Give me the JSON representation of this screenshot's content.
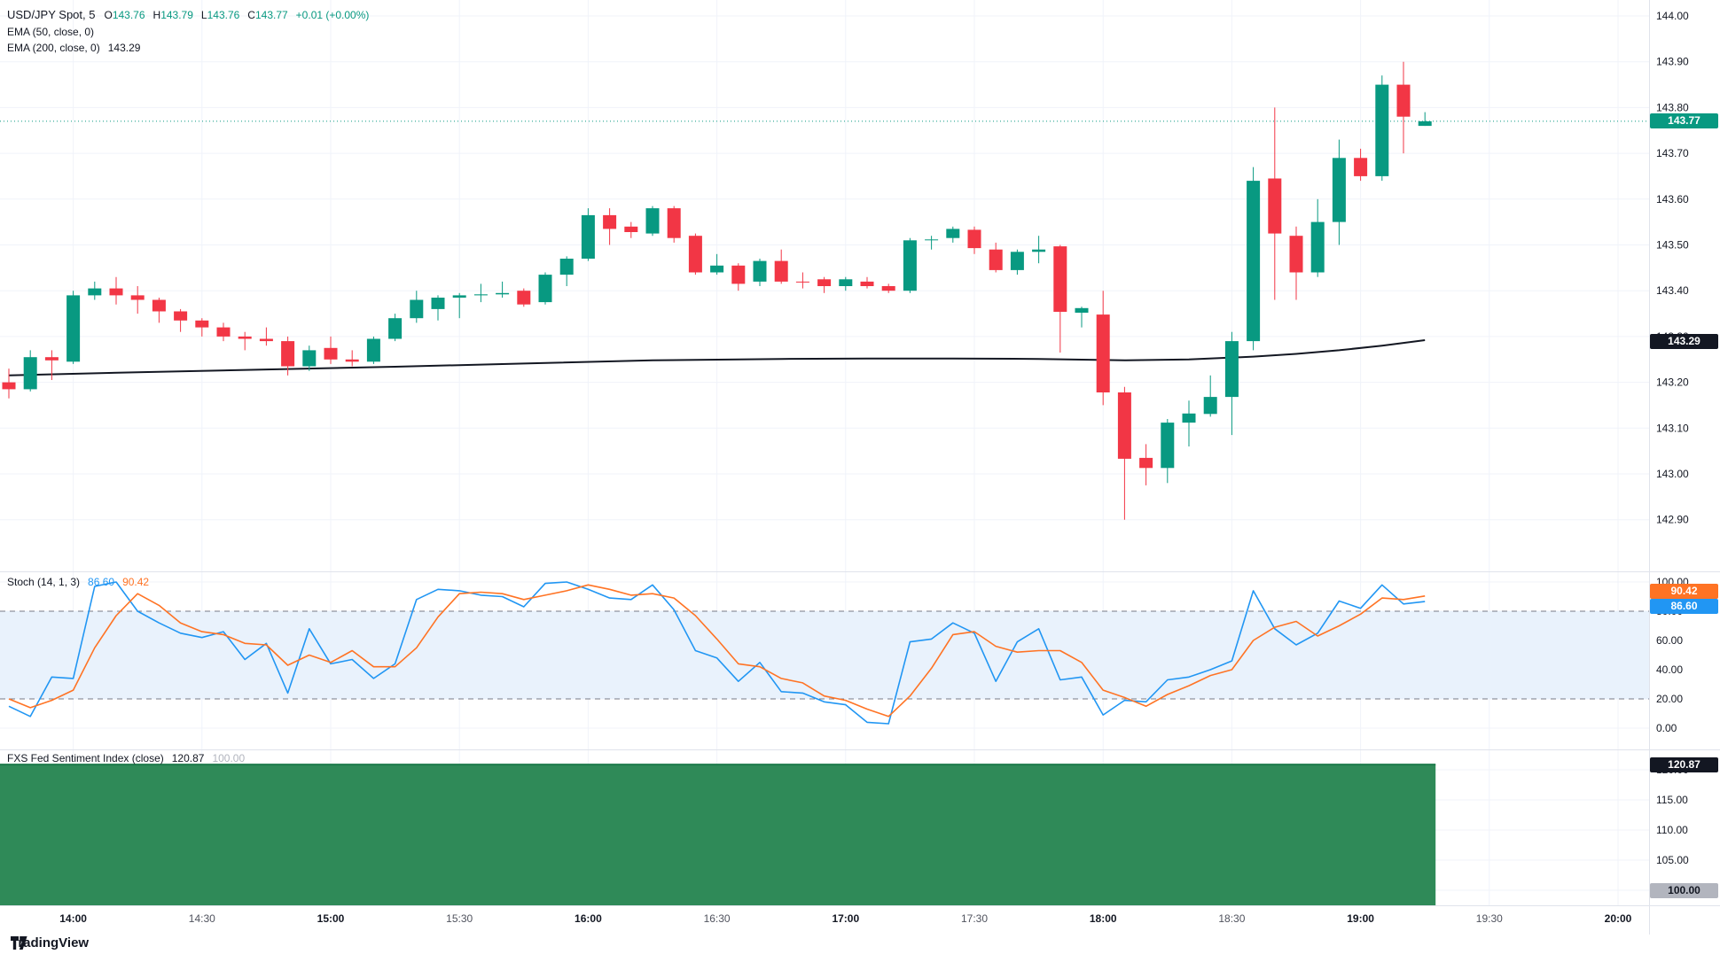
{
  "legend": {
    "symbol": "USD/JPY Spot, 5",
    "ohlc": [
      {
        "k": "O",
        "v": "143.76"
      },
      {
        "k": "H",
        "v": "143.79"
      },
      {
        "k": "L",
        "v": "143.76"
      },
      {
        "k": "C",
        "v": "143.77"
      }
    ],
    "change": "+0.01 (+0.00%)",
    "ema50": "EMA (50, close, 0)",
    "ema200": "EMA (200, close, 0)",
    "ema200_value": "143.29",
    "stoch": "Stoch (14, 1, 3)",
    "stoch_k_value": "86.60",
    "stoch_d_value": "90.42",
    "fxs": "FXS Fed Sentiment Index (close)",
    "fxs_value": "120.87",
    "fxs_baseline": "100.00"
  },
  "badges": {
    "price": "143.77",
    "ema": "143.29",
    "stoch_d": "90.42",
    "stoch_k": "86.60",
    "fxs": "120.87",
    "fxs_base": "100.00"
  },
  "watermark": {
    "logo_icon": "tradingview-logo-icon",
    "label": "TradingView"
  },
  "colors": {
    "up": "#089981",
    "down": "#F23645",
    "ema_line": "#131722",
    "stoch_k": "#2196F3",
    "stoch_d": "#FF7324",
    "stoch_band": "#E9F2FC",
    "band_dash": "#787B86",
    "grid": "#F0F3FA",
    "separator": "#E0E3EB",
    "area_fill": "#2F8A58",
    "area_line": "#1C7A4A",
    "axis_text": "#131722",
    "minor_time_text": "#50535E",
    "price_badge_bg": "#089981",
    "ema_badge_bg": "#131722",
    "fxs_badge_bg": "#131722",
    "fxs_base_badge_bg": "#B2B5BE"
  },
  "chart_data": [
    {
      "type": "candlestick",
      "title": "USD/JPY Spot, 5",
      "interval_label": "5",
      "current_price": 143.77,
      "ylim": [
        142.82,
        144.02
      ],
      "y_ticks": [
        144.0,
        143.9,
        143.8,
        143.7,
        143.6,
        143.5,
        143.4,
        143.3,
        143.2,
        143.1,
        143.0,
        142.9
      ],
      "ema200": {
        "name": "EMA (200, close, 0)",
        "value": 143.29,
        "points": [
          [
            0,
            143.215
          ],
          [
            6,
            143.222
          ],
          [
            12,
            143.228
          ],
          [
            18,
            143.234
          ],
          [
            24,
            143.241
          ],
          [
            30,
            143.248
          ],
          [
            36,
            143.251
          ],
          [
            40,
            143.252
          ],
          [
            44,
            143.252
          ],
          [
            48,
            143.251
          ],
          [
            52,
            143.248
          ],
          [
            55,
            143.25
          ],
          [
            58,
            143.256
          ],
          [
            60,
            143.262
          ],
          [
            62,
            143.27
          ],
          [
            64,
            143.28
          ],
          [
            66,
            143.292
          ]
        ]
      },
      "ohlc": [
        [
          143.2,
          143.23,
          143.165,
          143.185
        ],
        [
          143.185,
          143.27,
          143.18,
          143.255
        ],
        [
          143.255,
          143.27,
          143.205,
          143.248
        ],
        [
          143.245,
          143.4,
          143.24,
          143.39
        ],
        [
          143.39,
          143.42,
          143.38,
          143.405
        ],
        [
          143.405,
          143.43,
          143.37,
          143.39
        ],
        [
          143.39,
          143.41,
          143.35,
          143.38
        ],
        [
          143.38,
          143.385,
          143.33,
          143.355
        ],
        [
          143.355,
          143.36,
          143.31,
          143.335
        ],
        [
          143.335,
          143.34,
          143.3,
          143.32
        ],
        [
          143.32,
          143.33,
          143.29,
          143.3
        ],
        [
          143.3,
          143.31,
          143.27,
          143.295
        ],
        [
          143.295,
          143.32,
          143.28,
          143.29
        ],
        [
          143.29,
          143.3,
          143.215,
          143.235
        ],
        [
          143.235,
          143.28,
          143.225,
          143.27
        ],
        [
          143.275,
          143.3,
          143.24,
          143.25
        ],
        [
          143.25,
          143.27,
          143.235,
          143.245
        ],
        [
          143.245,
          143.3,
          143.24,
          143.295
        ],
        [
          143.295,
          143.35,
          143.29,
          143.34
        ],
        [
          143.34,
          143.4,
          143.33,
          143.38
        ],
        [
          143.36,
          143.39,
          143.335,
          143.385
        ],
        [
          143.385,
          143.395,
          143.34,
          143.39
        ],
        [
          143.39,
          143.415,
          143.375,
          143.392
        ],
        [
          143.392,
          143.42,
          143.385,
          143.395
        ],
        [
          143.4,
          143.405,
          143.365,
          143.37
        ],
        [
          143.375,
          143.44,
          143.37,
          143.435
        ],
        [
          143.435,
          143.475,
          143.41,
          143.47
        ],
        [
          143.47,
          143.58,
          143.465,
          143.565
        ],
        [
          143.565,
          143.58,
          143.5,
          143.535
        ],
        [
          143.54,
          143.55,
          143.515,
          143.528
        ],
        [
          143.525,
          143.585,
          143.52,
          143.58
        ],
        [
          143.58,
          143.585,
          143.505,
          143.515
        ],
        [
          143.52,
          143.525,
          143.435,
          143.44
        ],
        [
          143.44,
          143.48,
          143.435,
          143.455
        ],
        [
          143.455,
          143.46,
          143.4,
          143.415
        ],
        [
          143.42,
          143.47,
          143.41,
          143.465
        ],
        [
          143.465,
          143.49,
          143.415,
          143.42
        ],
        [
          143.42,
          143.44,
          143.405,
          143.418
        ],
        [
          143.425,
          143.43,
          143.395,
          143.41
        ],
        [
          143.41,
          143.43,
          143.4,
          143.425
        ],
        [
          143.42,
          143.43,
          143.405,
          143.41
        ],
        [
          143.41,
          143.415,
          143.395,
          143.4
        ],
        [
          143.4,
          143.515,
          143.395,
          143.51
        ],
        [
          143.51,
          143.52,
          143.49,
          143.512
        ],
        [
          143.515,
          143.54,
          143.505,
          143.535
        ],
        [
          143.533,
          143.54,
          143.48,
          143.493
        ],
        [
          143.49,
          143.505,
          143.44,
          143.445
        ],
        [
          143.445,
          143.49,
          143.435,
          143.485
        ],
        [
          143.485,
          143.52,
          143.46,
          143.49
        ],
        [
          143.497,
          143.5,
          143.265,
          143.354
        ],
        [
          143.352,
          143.365,
          143.32,
          143.362
        ],
        [
          143.348,
          143.4,
          143.15,
          143.178
        ],
        [
          143.178,
          143.19,
          142.9,
          143.033
        ],
        [
          143.035,
          143.065,
          142.975,
          143.013
        ],
        [
          143.013,
          143.12,
          142.98,
          143.112
        ],
        [
          143.112,
          143.16,
          143.06,
          143.132
        ],
        [
          143.131,
          143.215,
          143.125,
          143.168
        ],
        [
          143.168,
          143.31,
          143.085,
          143.29
        ],
        [
          143.29,
          143.67,
          143.27,
          143.64
        ],
        [
          143.645,
          143.8,
          143.38,
          143.525
        ],
        [
          143.52,
          143.54,
          143.38,
          143.44
        ],
        [
          143.44,
          143.6,
          143.43,
          143.55
        ],
        [
          143.55,
          143.73,
          143.5,
          143.69
        ],
        [
          143.69,
          143.71,
          143.64,
          143.65
        ],
        [
          143.65,
          143.87,
          143.64,
          143.85
        ],
        [
          143.85,
          143.9,
          143.7,
          143.78
        ],
        [
          143.76,
          143.79,
          143.76,
          143.77
        ]
      ]
    },
    {
      "type": "line",
      "title": "Stoch (14, 1, 3)",
      "ylim": [
        -12,
        112
      ],
      "y_ticks": [
        100.0,
        80.0,
        60.0,
        40.0,
        20.0,
        0.0
      ],
      "bands": [
        80,
        20
      ],
      "series": [
        {
          "name": "%K",
          "color": "#2196F3",
          "last": 86.6,
          "values": [
            15,
            8,
            35,
            34,
            97,
            100,
            80,
            72,
            65,
            62,
            66,
            47,
            58,
            24,
            68,
            44,
            47,
            34,
            44,
            88,
            95,
            94,
            91,
            90,
            83,
            99,
            100,
            95,
            89,
            88,
            98,
            81,
            53,
            48,
            32,
            45,
            25,
            24,
            18,
            16,
            4,
            3,
            59,
            61,
            72,
            65,
            32,
            59,
            68,
            33,
            35,
            9,
            19,
            18,
            33,
            35,
            40,
            46,
            94,
            68,
            57,
            65,
            87,
            82,
            98,
            85,
            86.6
          ]
        },
        {
          "name": "%D",
          "color": "#FF7324",
          "last": 90.42,
          "values": [
            20,
            14,
            19,
            26,
            55,
            77,
            92,
            84,
            72,
            66,
            64,
            58,
            57,
            43,
            50,
            45,
            53,
            42,
            42,
            55,
            76,
            92,
            93,
            92,
            88,
            91,
            94,
            98,
            95,
            91,
            92,
            89,
            77,
            61,
            44,
            42,
            34,
            31,
            22,
            19,
            13,
            8,
            22,
            41,
            64,
            66,
            56,
            52,
            53,
            53,
            45,
            26,
            21,
            15,
            23,
            29,
            36,
            40,
            60,
            69,
            73,
            63,
            70,
            78,
            89,
            88,
            90.42
          ]
        }
      ]
    },
    {
      "type": "area",
      "title": "FXS Fed Sentiment Index (close)",
      "value": 120.87,
      "baseline": 100.0,
      "ylim": [
        97,
        123
      ],
      "y_ticks": [
        120.0,
        115.0,
        110.0,
        105.0,
        100.0
      ]
    }
  ],
  "time_axis": {
    "ticks": [
      {
        "label": "14:00",
        "index": 3,
        "major": true
      },
      {
        "label": "14:30",
        "index": 9,
        "major": false
      },
      {
        "label": "15:00",
        "index": 15,
        "major": true
      },
      {
        "label": "15:30",
        "index": 21,
        "major": false
      },
      {
        "label": "16:00",
        "index": 27,
        "major": true
      },
      {
        "label": "16:30",
        "index": 33,
        "major": false
      },
      {
        "label": "17:00",
        "index": 39,
        "major": true
      },
      {
        "label": "17:30",
        "index": 45,
        "major": false
      },
      {
        "label": "18:00",
        "index": 51,
        "major": true
      },
      {
        "label": "18:30",
        "index": 57,
        "major": false
      },
      {
        "label": "19:00",
        "index": 63,
        "major": true
      },
      {
        "label": "19:30",
        "index": 69,
        "major": false
      },
      {
        "label": "20:00",
        "index": 75,
        "major": true
      }
    ]
  }
}
